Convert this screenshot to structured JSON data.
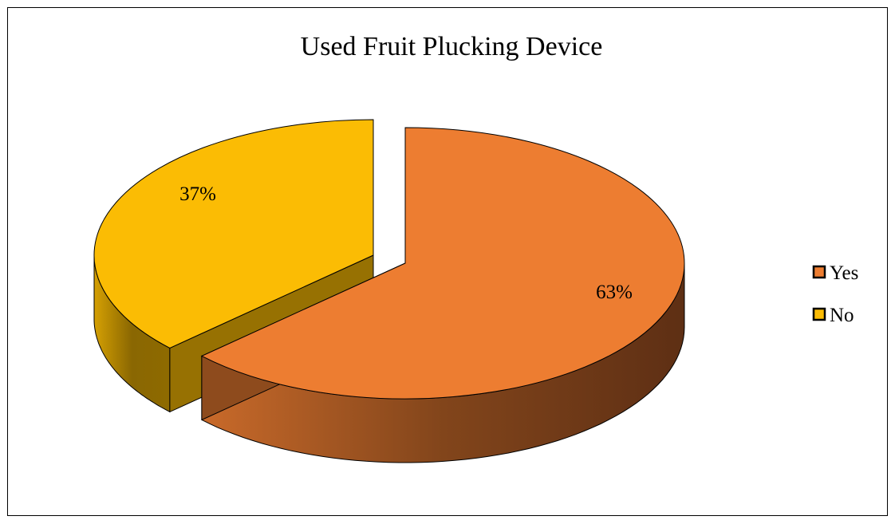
{
  "chart_data": {
    "type": "pie",
    "style": "3d-exploded",
    "title": "Used Fruit Plucking Device",
    "slices": [
      {
        "label": "Yes",
        "value": 63,
        "display": "63%",
        "color": "#ED7D31",
        "side_dark": "#5E2F14"
      },
      {
        "label": "No",
        "value": 37,
        "display": "37%",
        "color": "#FBBC04",
        "side_dark": "#8E6A00"
      }
    ],
    "legend": {
      "position": "right"
    }
  }
}
